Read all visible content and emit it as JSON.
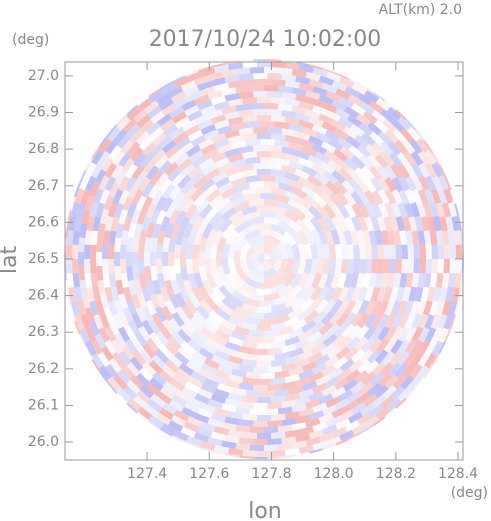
{
  "chart_data": {
    "type": "radar-field",
    "title": "2017/10/24 10:02:00",
    "subtitle": "ALT(km) 2.0",
    "x_label": "lon",
    "y_label": "lat",
    "x_unit": "(deg)",
    "y_unit": "(deg)",
    "xlim": [
      127.136,
      128.416
    ],
    "ylim": [
      25.951,
      27.038
    ],
    "xticks": [
      127.4,
      127.6,
      127.8,
      {
        "value": 128,
        "label": "128.0"
      },
      128.2,
      128.4
    ],
    "yticks": [
      {
        "value": 26,
        "label": "26.0"
      },
      26.1,
      26.2,
      26.3,
      26.4,
      26.5,
      26.6,
      26.7,
      26.8,
      26.9,
      {
        "value": 27,
        "label": "27.0"
      }
    ]
  }
}
